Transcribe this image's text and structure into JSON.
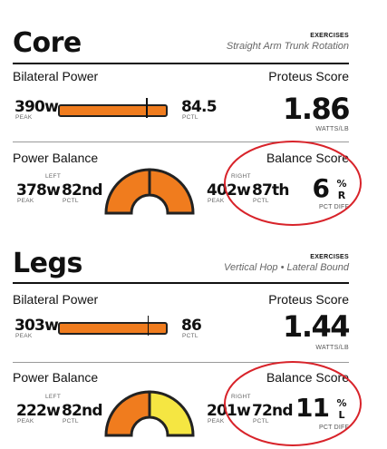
{
  "sections": [
    {
      "title": "Core",
      "exercises_label": "EXERCISES",
      "exercise_name": "Straight Arm Trunk Rotation",
      "bilateral_power_label": "Bilateral Power",
      "proteus_score_label": "Proteus Score",
      "peak_value": "390w",
      "peak_label": "PEAK",
      "pctl_value": "84.5",
      "pctl_label": "PCTL",
      "bar_fraction": 0.845,
      "proteus_score": "1.86",
      "proteus_unit": "WATTS/LB",
      "power_balance_label": "Power Balance",
      "balance_score_label": "Balance Score",
      "left_label": "LEFT",
      "left_peak": "378w",
      "left_peak_label": "PEAK",
      "left_pctl": "82nd",
      "left_pctl_label": "PCTL",
      "right_label": "RIGHT",
      "right_peak": "402w",
      "right_peak_label": "PEAK",
      "right_pctl": "87th",
      "right_pctl_label": "PCTL",
      "balance_value": "6",
      "balance_pct": "%",
      "balance_side": "R",
      "balance_unit": "PCT DIFF"
    },
    {
      "title": "Legs",
      "exercises_label": "EXERCISES",
      "exercise_name": "Vertical Hop • Lateral Bound",
      "bilateral_power_label": "Bilateral Power",
      "proteus_score_label": "Proteus Score",
      "peak_value": "303w",
      "peak_label": "PEAK",
      "pctl_value": "86",
      "pctl_label": "PCTL",
      "bar_fraction": 0.86,
      "proteus_score": "1.44",
      "proteus_unit": "WATTS/LB",
      "power_balance_label": "Power Balance",
      "balance_score_label": "Balance Score",
      "left_label": "LEFT",
      "left_peak": "222w",
      "left_peak_label": "PEAK",
      "left_pctl": "82nd",
      "left_pctl_label": "PCTL",
      "right_label": "RIGHT",
      "right_peak": "201w",
      "right_peak_label": "PEAK",
      "right_pctl": "72nd",
      "right_pctl_label": "PCTL",
      "balance_value": "11",
      "balance_pct": "%",
      "balance_side": "L",
      "balance_unit": "PCT DIFF"
    }
  ],
  "colors": {
    "bar_fill": "#f07c1e",
    "gauge_orange": "#f07c1e",
    "gauge_yellow": "#f5e642",
    "annotation_circle": "#d8232a"
  }
}
